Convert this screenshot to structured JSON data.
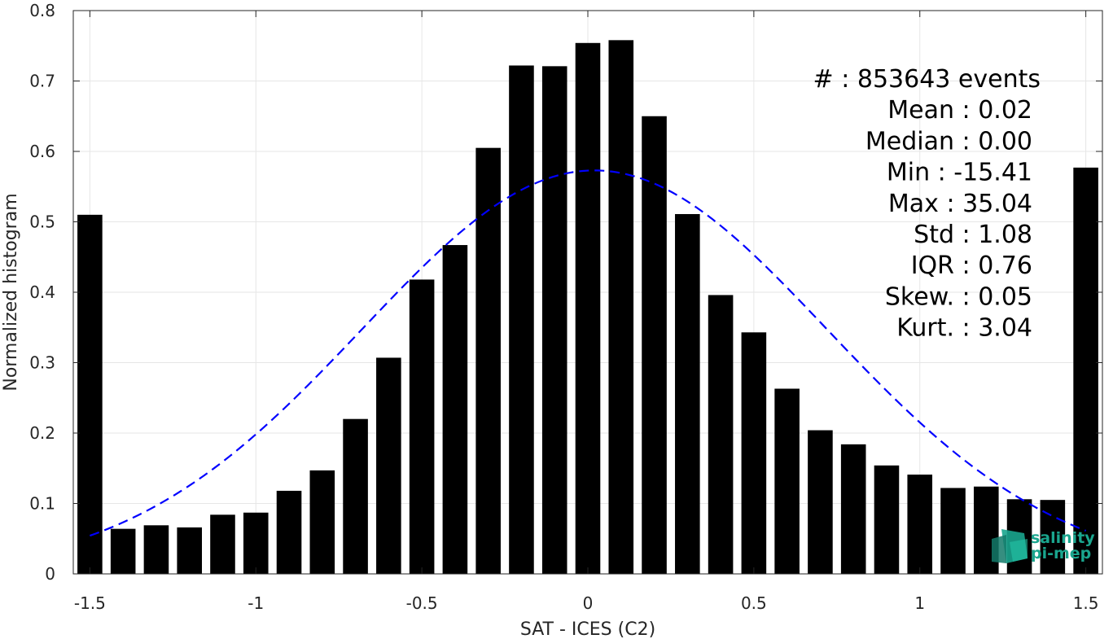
{
  "chart_data": {
    "type": "bar",
    "xlabel": "SAT - ICES (C2)",
    "ylabel": "Normalized histogram",
    "xlim": [
      -1.55,
      1.55
    ],
    "ylim": [
      0,
      0.8
    ],
    "xticks": [
      -1.5,
      -1,
      -0.5,
      0,
      0.5,
      1,
      1.5
    ],
    "xtick_labels": [
      "-1.5",
      "-1",
      "-0.5",
      "0",
      "0.5",
      "1",
      "1.5"
    ],
    "yticks": [
      0,
      0.1,
      0.2,
      0.3,
      0.4,
      0.5,
      0.6,
      0.7,
      0.8
    ],
    "ytick_labels": [
      "0",
      "0.1",
      "0.2",
      "0.3",
      "0.4",
      "0.5",
      "0.6",
      "0.7",
      "0.8"
    ],
    "grid": true,
    "bar_color": "#000000",
    "bin_width": 0.1,
    "bin_centers": [
      -1.5,
      -1.4,
      -1.3,
      -1.2,
      -1.1,
      -1.0,
      -0.9,
      -0.8,
      -0.7,
      -0.6,
      -0.5,
      -0.4,
      -0.3,
      -0.2,
      -0.1,
      0.0,
      0.1,
      0.2,
      0.3,
      0.4,
      0.5,
      0.6,
      0.7,
      0.8,
      0.9,
      1.0,
      1.1,
      1.2,
      1.3,
      1.4,
      1.5
    ],
    "values": [
      0.51,
      0.064,
      0.069,
      0.066,
      0.084,
      0.087,
      0.118,
      0.147,
      0.22,
      0.307,
      0.418,
      0.467,
      0.605,
      0.722,
      0.721,
      0.754,
      0.758,
      0.65,
      0.511,
      0.396,
      0.343,
      0.263,
      0.204,
      0.184,
      0.154,
      0.141,
      0.122,
      0.124,
      0.106,
      0.105,
      0.577
    ],
    "fit_curve": {
      "style": "dashed",
      "color": "#0000ff",
      "mean": 0.02,
      "std": 0.7,
      "peak": 0.573,
      "x_range": [
        -1.5,
        1.5
      ]
    },
    "annotations": [
      "#  : 853643 events",
      "Mean : 0.02",
      "Median : 0.00",
      "Min : -15.41",
      "Max : 35.04",
      "Std : 1.08",
      "IQR : 0.76",
      "Skew. : 0.05",
      "Kurt. : 3.04"
    ]
  },
  "logo": {
    "line1": "salinity",
    "line2": "pi-mep",
    "color": "#1aa58e"
  }
}
